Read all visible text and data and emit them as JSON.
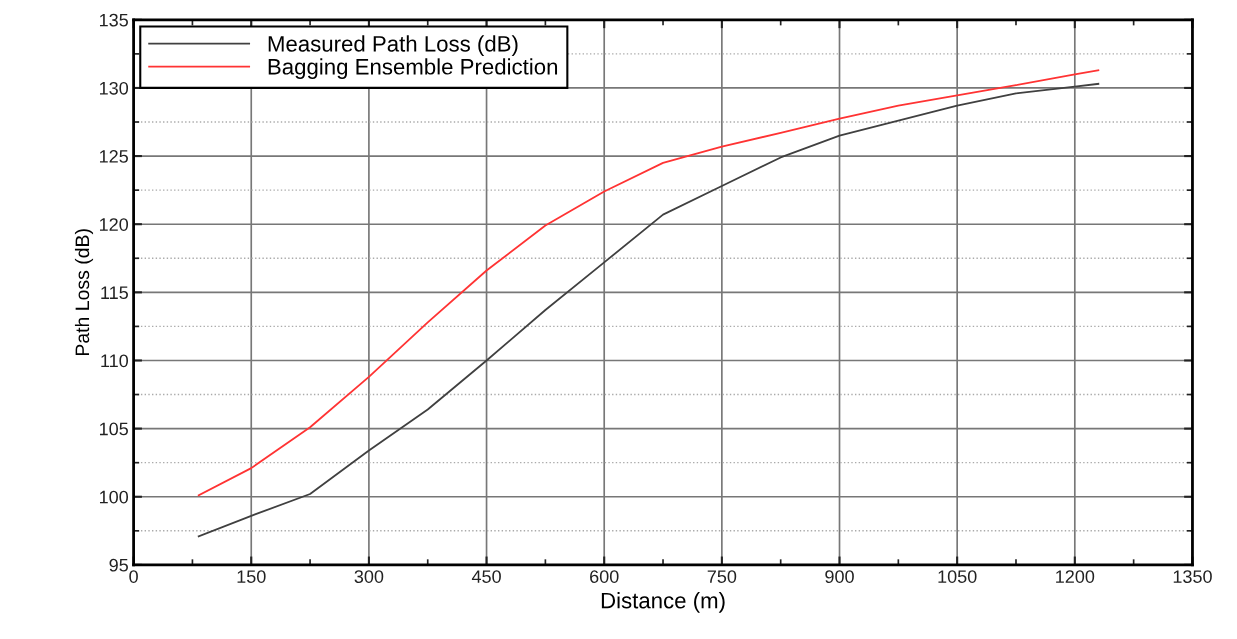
{
  "chart_data": {
    "type": "line",
    "xlabel": "Distance (m)",
    "ylabel": "Path Loss (dB)",
    "xlim": [
      0,
      1350
    ],
    "xticks": [
      0,
      150,
      300,
      450,
      600,
      750,
      900,
      1050,
      1200,
      1350
    ],
    "ylim": [
      95,
      135
    ],
    "yticks": [
      95,
      100,
      105,
      110,
      115,
      120,
      125,
      130,
      135
    ],
    "grid": true,
    "legend": "top left",
    "marker": "none",
    "line_style": "solid",
    "x": [
      83,
      150,
      225,
      300,
      375,
      450,
      525,
      600,
      675,
      750,
      825,
      900,
      975,
      1050,
      1125,
      1200,
      1230
    ],
    "series": [
      {
        "name": "Measured Path Loss (dB)",
        "color": "#404040",
        "values": [
          97.1,
          98.6,
          100.2,
          103.4,
          106.4,
          110.0,
          113.7,
          117.2,
          120.7,
          122.8,
          124.9,
          126.5,
          127.6,
          128.7,
          129.6,
          130.1,
          130.3
        ]
      },
      {
        "name": "Bagging Ensemble Prediction",
        "color": "#ff3333",
        "values": [
          100.1,
          102.1,
          105.1,
          108.8,
          112.8,
          116.6,
          119.9,
          122.4,
          124.5,
          125.7,
          126.7,
          127.75,
          128.7,
          129.45,
          130.2,
          131.0,
          131.3
        ]
      }
    ]
  }
}
